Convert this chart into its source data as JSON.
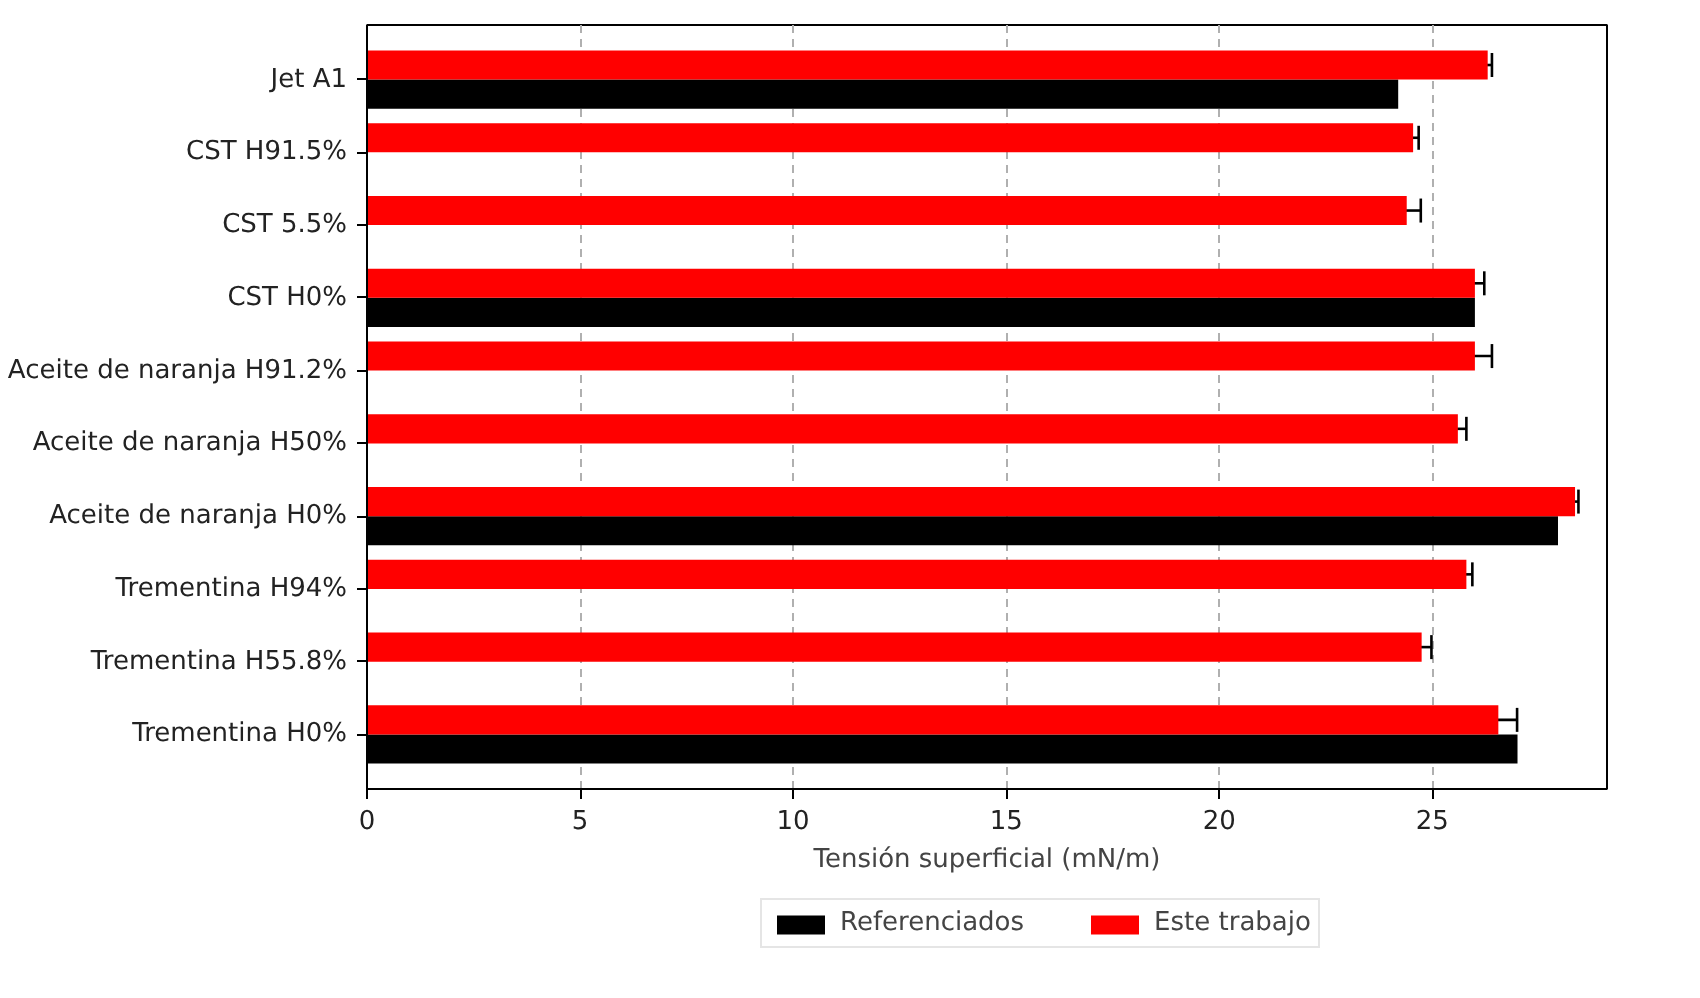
{
  "chart_data": {
    "type": "bar",
    "orientation": "horizontal",
    "xlabel": "Tensión superficial (mN/m)",
    "categories": [
      "Jet A1",
      "CST H91.5%",
      "CST 5.5%",
      "CST H0%",
      "Aceite de naranja H91.2%",
      "Aceite de naranja H50%",
      "Aceite de naranja H0%",
      "Trementina H94%",
      "Trementina H55.8%",
      "Trementina H0%"
    ],
    "series": [
      {
        "name": "Referenciados",
        "color": "#000000",
        "values": [
          24.2,
          null,
          null,
          26.0,
          null,
          null,
          27.95,
          null,
          null,
          27.0
        ]
      },
      {
        "name": "Este trabajo",
        "color": "#ff0000",
        "values": [
          26.3,
          24.55,
          24.4,
          26.0,
          26.0,
          25.6,
          28.35,
          25.8,
          24.75,
          26.55
        ],
        "errors": [
          0.1,
          0.13,
          0.33,
          0.22,
          0.4,
          0.2,
          0.08,
          0.14,
          0.23,
          0.44
        ]
      }
    ],
    "xlim": [
      0,
      29.1
    ],
    "xticks": [
      0,
      5,
      10,
      15,
      20,
      25
    ],
    "grid": "x",
    "legend": "bottom"
  }
}
